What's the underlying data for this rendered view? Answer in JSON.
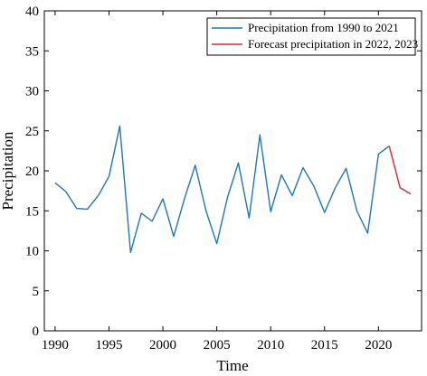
{
  "chart_data": {
    "type": "line",
    "title": "",
    "xlabel": "Time",
    "ylabel": "Precipitation",
    "xlim": [
      1989,
      2024
    ],
    "ylim": [
      0,
      40
    ],
    "x_ticks": [
      1990,
      1995,
      2000,
      2005,
      2010,
      2015,
      2020
    ],
    "y_ticks": [
      0,
      5,
      10,
      15,
      20,
      25,
      30,
      35,
      40
    ],
    "grid": false,
    "legend_position": "top-right",
    "series": [
      {
        "name": "Precipitation from 1990 to 2021",
        "color": "#1f77b4",
        "x": [
          1990,
          1991,
          1992,
          1993,
          1994,
          1995,
          1996,
          1997,
          1998,
          1999,
          2000,
          2001,
          2002,
          2003,
          2004,
          2005,
          2006,
          2007,
          2008,
          2009,
          2010,
          2011,
          2012,
          2013,
          2014,
          2015,
          2016,
          2017,
          2018,
          2019,
          2020,
          2021
        ],
        "y": [
          18.5,
          17.4,
          15.3,
          15.2,
          16.9,
          19.3,
          25.6,
          9.8,
          14.7,
          13.7,
          16.5,
          11.8,
          16.5,
          20.7,
          15.0,
          10.9,
          16.7,
          21.0,
          14.1,
          24.5,
          14.9,
          19.5,
          16.9,
          20.4,
          18.1,
          14.8,
          17.9,
          20.3,
          15.0,
          12.2,
          22.1,
          23.1
        ]
      },
      {
        "name": "Forecast precipitation in 2022, 2023",
        "color": "#e8262b",
        "x": [
          2021,
          2022,
          2023
        ],
        "y": [
          23.1,
          17.9,
          17.1
        ]
      }
    ]
  }
}
